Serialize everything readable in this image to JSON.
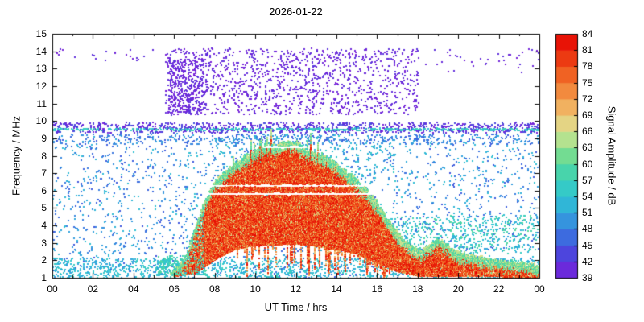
{
  "chart_data": {
    "type": "heatmap",
    "title": "2026-01-22",
    "x_axis": {
      "label": "UT Time / hrs",
      "min": 0,
      "max": 24,
      "ticks": [
        {
          "v": 0,
          "label": "00"
        },
        {
          "v": 2,
          "label": "02"
        },
        {
          "v": 4,
          "label": "04"
        },
        {
          "v": 6,
          "label": "06"
        },
        {
          "v": 8,
          "label": "08"
        },
        {
          "v": 10,
          "label": "10"
        },
        {
          "v": 12,
          "label": "12"
        },
        {
          "v": 14,
          "label": "14"
        },
        {
          "v": 16,
          "label": "16"
        },
        {
          "v": 18,
          "label": "18"
        },
        {
          "v": 20,
          "label": "20"
        },
        {
          "v": 22,
          "label": "22"
        },
        {
          "v": 24,
          "label": "00"
        }
      ]
    },
    "y_axis": {
      "label": "Frequency / MHz",
      "min": 1,
      "max": 15,
      "ticks": [
        {
          "v": 1,
          "label": "1"
        },
        {
          "v": 2,
          "label": "2"
        },
        {
          "v": 3,
          "label": "3"
        },
        {
          "v": 4,
          "label": "4"
        },
        {
          "v": 5,
          "label": "5"
        },
        {
          "v": 6,
          "label": "6"
        },
        {
          "v": 7,
          "label": "7"
        },
        {
          "v": 8,
          "label": "8"
        },
        {
          "v": 9,
          "label": "9"
        },
        {
          "v": 10,
          "label": "10"
        },
        {
          "v": 11,
          "label": "11"
        },
        {
          "v": 12,
          "label": "12"
        },
        {
          "v": 13,
          "label": "13"
        },
        {
          "v": 14,
          "label": "14"
        },
        {
          "v": 15,
          "label": "15"
        }
      ]
    },
    "colorbar": {
      "label": "Signal Amplitude / dB",
      "min": 39,
      "max": 84,
      "ticks": [
        39,
        42,
        45,
        48,
        51,
        54,
        57,
        60,
        63,
        66,
        69,
        72,
        75,
        78,
        81,
        84
      ],
      "stops": [
        [
          39,
          "#7b1fd8"
        ],
        [
          42,
          "#5a35dd"
        ],
        [
          45,
          "#3f55dd"
        ],
        [
          48,
          "#3a80e0"
        ],
        [
          51,
          "#2fa8dc"
        ],
        [
          54,
          "#30c4d2"
        ],
        [
          57,
          "#3ad0bb"
        ],
        [
          60,
          "#55d89b"
        ],
        [
          63,
          "#90e089"
        ],
        [
          66,
          "#d8e494"
        ],
        [
          69,
          "#f0c473"
        ],
        [
          72,
          "#f29e4d"
        ],
        [
          75,
          "#f2762e"
        ],
        [
          78,
          "#ee4d18"
        ],
        [
          81,
          "#e9260c"
        ],
        [
          84,
          "#e60000"
        ]
      ]
    },
    "regions": [
      {
        "name": "background-scatter",
        "t": [
          0,
          24
        ],
        "f": [
          1.0,
          9.3
        ],
        "n": 2400,
        "amp": [
          45,
          54
        ]
      },
      {
        "name": "low-freq-band",
        "t": [
          0,
          24
        ],
        "f": [
          1.05,
          2.15
        ],
        "n": 1300,
        "amp": [
          50,
          57
        ]
      },
      {
        "name": "morning-teal-patch",
        "t": [
          5.2,
          7.6
        ],
        "f": [
          1.2,
          2.3
        ],
        "n": 260,
        "amp": [
          54,
          60
        ]
      },
      {
        "name": "nine-mhz-scatter",
        "t": [
          0,
          24
        ],
        "f": [
          8.7,
          9.3
        ],
        "n": 420,
        "amp": [
          45,
          51
        ]
      },
      {
        "name": "ten-mhz-purple-band",
        "t": [
          0,
          24
        ],
        "f": [
          9.35,
          9.95
        ],
        "n": 950,
        "amp": [
          39,
          45
        ]
      },
      {
        "name": "cyan-line-9p5",
        "t": [
          0,
          24
        ],
        "f": [
          9.5,
          9.62
        ],
        "n": 420,
        "amp": [
          53,
          58
        ]
      },
      {
        "name": "es-purple-cloud",
        "t": [
          5.5,
          18
        ],
        "f": [
          10.4,
          14.2
        ],
        "n": 1250,
        "amp": [
          39,
          42
        ]
      },
      {
        "name": "es-purple-dense-edge",
        "t": [
          5.7,
          7.6
        ],
        "f": [
          10.5,
          13.6
        ],
        "n": 330,
        "amp": [
          39,
          42
        ]
      },
      {
        "name": "stray-top-left",
        "t": [
          0,
          5.5
        ],
        "f": [
          13.5,
          14.2
        ],
        "n": 22,
        "amp": [
          39,
          42
        ]
      },
      {
        "name": "stray-top-right",
        "t": [
          18,
          24
        ],
        "f": [
          12.8,
          14.2
        ],
        "n": 40,
        "amp": [
          39,
          42
        ]
      },
      {
        "name": "evening-green-scatter",
        "t": [
          16,
          24
        ],
        "f": [
          2.4,
          4.6
        ],
        "n": 520,
        "amp": [
          51,
          60
        ]
      },
      {
        "name": "day-high-cyan",
        "t": [
          8,
          17
        ],
        "f": [
          6.5,
          9.2
        ],
        "n": 260,
        "amp": [
          48,
          56
        ]
      }
    ],
    "trace": {
      "t_start": 5.8,
      "t_end": 24,
      "fmax": [
        [
          5.8,
          1.4
        ],
        [
          6.2,
          1.7
        ],
        [
          6.6,
          2.4
        ],
        [
          7.0,
          3.9
        ],
        [
          7.5,
          5.5
        ],
        [
          8.0,
          6.6
        ],
        [
          8.5,
          7.1
        ],
        [
          9.0,
          7.6
        ],
        [
          9.5,
          8.0
        ],
        [
          10.0,
          8.3
        ],
        [
          10.5,
          8.7
        ],
        [
          11.0,
          8.6
        ],
        [
          11.5,
          8.9
        ],
        [
          12.0,
          8.8
        ],
        [
          12.5,
          8.4
        ],
        [
          13.0,
          8.1
        ],
        [
          13.5,
          7.9
        ],
        [
          14.0,
          7.6
        ],
        [
          14.5,
          7.1
        ],
        [
          15.0,
          6.6
        ],
        [
          15.5,
          6.1
        ],
        [
          16.0,
          5.3
        ],
        [
          16.5,
          4.4
        ],
        [
          17.0,
          3.6
        ],
        [
          17.5,
          3.0
        ],
        [
          18.0,
          2.6
        ],
        [
          18.5,
          2.9
        ],
        [
          19.0,
          3.3
        ],
        [
          19.5,
          2.9
        ],
        [
          20.0,
          2.5
        ],
        [
          21.0,
          2.2
        ],
        [
          22.0,
          2.0
        ],
        [
          23.0,
          1.9
        ],
        [
          24.0,
          1.8
        ]
      ],
      "fmin": [
        [
          5.8,
          1.1
        ],
        [
          7.0,
          1.3
        ],
        [
          8.0,
          2.1
        ],
        [
          9.0,
          2.7
        ],
        [
          10.0,
          2.9
        ],
        [
          12.0,
          3.0
        ],
        [
          14.0,
          2.7
        ],
        [
          15.0,
          2.4
        ],
        [
          16.0,
          1.9
        ],
        [
          17.0,
          1.4
        ],
        [
          18.0,
          1.15
        ],
        [
          24.0,
          1.1
        ]
      ]
    },
    "gaps": [
      {
        "t": [
          7.5,
          16.4
        ],
        "f": [
          5.78,
          5.93
        ]
      },
      {
        "t": [
          7.5,
          16.4
        ],
        "f": [
          6.25,
          6.4
        ]
      },
      {
        "t": [
          10.3,
          12.4
        ],
        "f": [
          8.46,
          8.62
        ]
      }
    ]
  }
}
